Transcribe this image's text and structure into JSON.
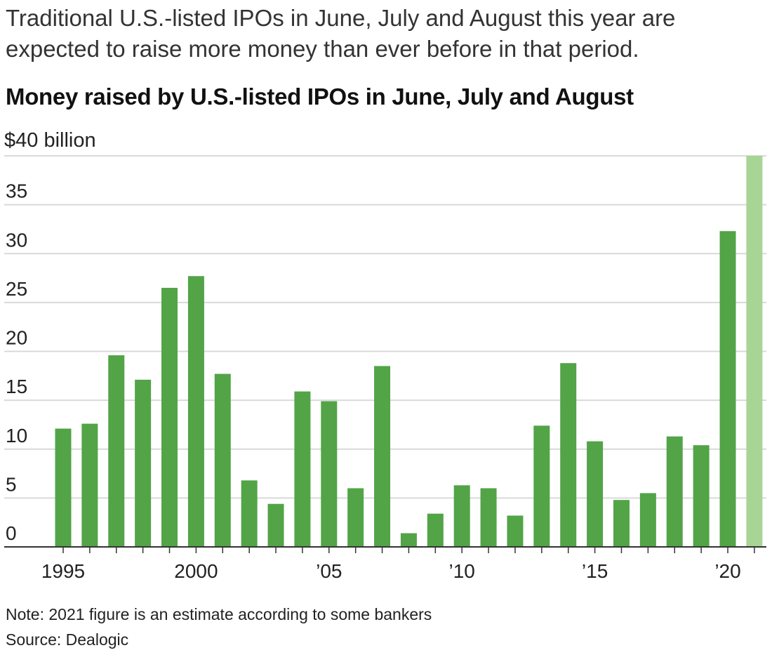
{
  "header": {
    "subtitle": "Traditional U.S.-listed IPOs in June, July and August this year are expected to raise more money than ever before in that period.",
    "title": "Money raised by U.S.-listed IPOs in June, July and August"
  },
  "footer": {
    "note": "Note: 2021 figure is an estimate according to some bankers",
    "source": "Source: Dealogic"
  },
  "colors": {
    "bar": "#52a447",
    "bar_estimate": "#a8d595",
    "grid": "#d9d9d9",
    "axis": "#333333"
  },
  "chart_data": {
    "type": "bar",
    "title": "Money raised by U.S.-listed IPOs in June, July and August",
    "xlabel": "",
    "ylabel": "$40 billion",
    "unit_label": "$40 billion",
    "ylim": [
      0,
      40
    ],
    "yticks": [
      0,
      5,
      10,
      15,
      20,
      25,
      30,
      35,
      40
    ],
    "ytick_labels": [
      "0",
      "5",
      "10",
      "15",
      "20",
      "25",
      "30",
      "35",
      ""
    ],
    "grid": true,
    "legend": "none",
    "categories": [
      "1995",
      "1996",
      "1997",
      "1998",
      "1999",
      "2000",
      "2001",
      "2002",
      "2003",
      "2004",
      "2005",
      "2006",
      "2007",
      "2008",
      "2009",
      "2010",
      "2011",
      "2012",
      "2013",
      "2014",
      "2015",
      "2016",
      "2017",
      "2018",
      "2019",
      "2020",
      "2021"
    ],
    "values": [
      12.1,
      12.6,
      19.6,
      17.1,
      26.5,
      27.7,
      17.7,
      6.8,
      4.4,
      15.9,
      14.9,
      6.0,
      18.5,
      1.4,
      3.4,
      6.3,
      6.0,
      3.2,
      12.4,
      18.8,
      10.8,
      4.8,
      5.5,
      11.3,
      10.4,
      32.3,
      40.0
    ],
    "estimate": [
      false,
      false,
      false,
      false,
      false,
      false,
      false,
      false,
      false,
      false,
      false,
      false,
      false,
      false,
      false,
      false,
      false,
      false,
      false,
      false,
      false,
      false,
      false,
      false,
      false,
      false,
      true
    ],
    "xtick_labels": [
      {
        "category": "1995",
        "label": "1995"
      },
      {
        "category": "2000",
        "label": "2000"
      },
      {
        "category": "2005",
        "label": "’05"
      },
      {
        "category": "2010",
        "label": "’10"
      },
      {
        "category": "2015",
        "label": "’15"
      },
      {
        "category": "2020",
        "label": "’20"
      }
    ],
    "annotations": [
      "2021 figure is an estimate according to some bankers"
    ]
  }
}
